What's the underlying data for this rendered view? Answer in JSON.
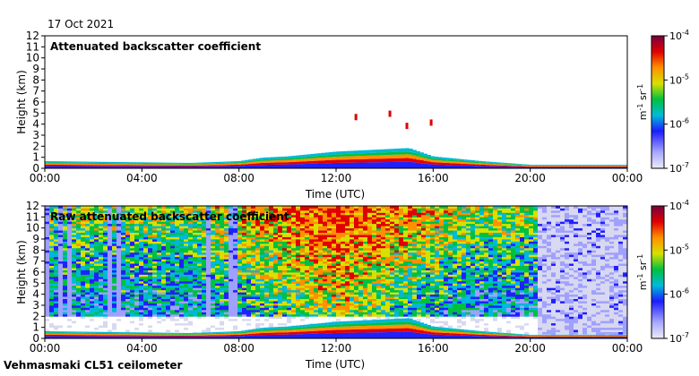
{
  "figure": {
    "date": "17 Oct 2021",
    "instrument": "Vehmasmaki CL51 ceilometer"
  },
  "chart_data": [
    {
      "type": "heatmap",
      "title": "Attenuated backscatter coefficient",
      "xlabel": "Time (UTC)",
      "ylabel": "Height (km)",
      "xlim": [
        0,
        24
      ],
      "ylim": [
        0,
        12
      ],
      "xticks": [
        "00:00",
        "04:00",
        "08:00",
        "12:00",
        "16:00",
        "20:00",
        "00:00"
      ],
      "yticks": [
        "0",
        "1",
        "2",
        "3",
        "4",
        "5",
        "6",
        "7",
        "8",
        "9",
        "10",
        "11",
        "12"
      ],
      "colorbar": {
        "label": "m-1 sr-1",
        "scale": "log",
        "range": [
          1e-07,
          0.0001
        ],
        "ticks": [
          "10-7",
          "10-6",
          "10-5",
          "10-4"
        ]
      },
      "features": [
        {
          "name": "boundary-layer-top",
          "time": [
            0,
            2,
            4,
            6,
            8,
            9,
            10,
            11,
            12,
            13,
            14,
            15,
            16,
            17,
            18,
            19,
            20,
            21,
            22,
            23,
            24
          ],
          "height_km": [
            0.6,
            0.55,
            0.5,
            0.45,
            0.6,
            0.9,
            1.0,
            1.2,
            1.4,
            1.5,
            1.6,
            1.7,
            1.0,
            0.8,
            0.6,
            0.45,
            0.3,
            0.3,
            0.3,
            0.3,
            0.3
          ]
        },
        {
          "name": "cloud-fragments",
          "time": [
            12.8,
            14.2,
            14.9,
            15.9
          ],
          "height_km": [
            4.6,
            4.9,
            3.8,
            4.1
          ]
        }
      ]
    },
    {
      "type": "heatmap",
      "title": "Raw attenuated backscatter coefficient",
      "xlabel": "Time (UTC)",
      "ylabel": "Height (km)",
      "xlim": [
        0,
        24
      ],
      "ylim": [
        0,
        12
      ],
      "xticks": [
        "00:00",
        "04:00",
        "08:00",
        "12:00",
        "16:00",
        "20:00",
        "00:00"
      ],
      "yticks": [
        "0",
        "1",
        "2",
        "3",
        "4",
        "5",
        "6",
        "7",
        "8",
        "9",
        "10",
        "11",
        "12"
      ],
      "colorbar": {
        "label": "m-1 sr-1",
        "scale": "log",
        "range": [
          1e-07,
          0.0001
        ],
        "ticks": [
          "10-7",
          "10-6",
          "10-5",
          "10-4"
        ]
      },
      "features": [
        {
          "name": "noise-region",
          "time": [
            0,
            20.3
          ],
          "height_km": [
            2,
            12
          ]
        },
        {
          "name": "low-noise-region",
          "time": [
            20.3,
            24
          ],
          "height_km": [
            0,
            12
          ]
        },
        {
          "name": "boundary-layer-top",
          "time": [
            0,
            2,
            4,
            6,
            8,
            9,
            10,
            11,
            12,
            13,
            14,
            15,
            16,
            17,
            18,
            19,
            20,
            21,
            22,
            23,
            24
          ],
          "height_km": [
            0.6,
            0.55,
            0.5,
            0.45,
            0.6,
            0.9,
            1.0,
            1.2,
            1.4,
            1.5,
            1.6,
            1.7,
            1.0,
            0.8,
            0.6,
            0.45,
            0.3,
            0.3,
            0.3,
            0.3,
            0.3
          ]
        }
      ]
    }
  ],
  "colors": {
    "colormap": [
      "#d8d8f0",
      "#a0a0ff",
      "#2020ff",
      "#00b8d8",
      "#00c040",
      "#d8e000",
      "#ff9000",
      "#e00000",
      "#800040"
    ]
  }
}
